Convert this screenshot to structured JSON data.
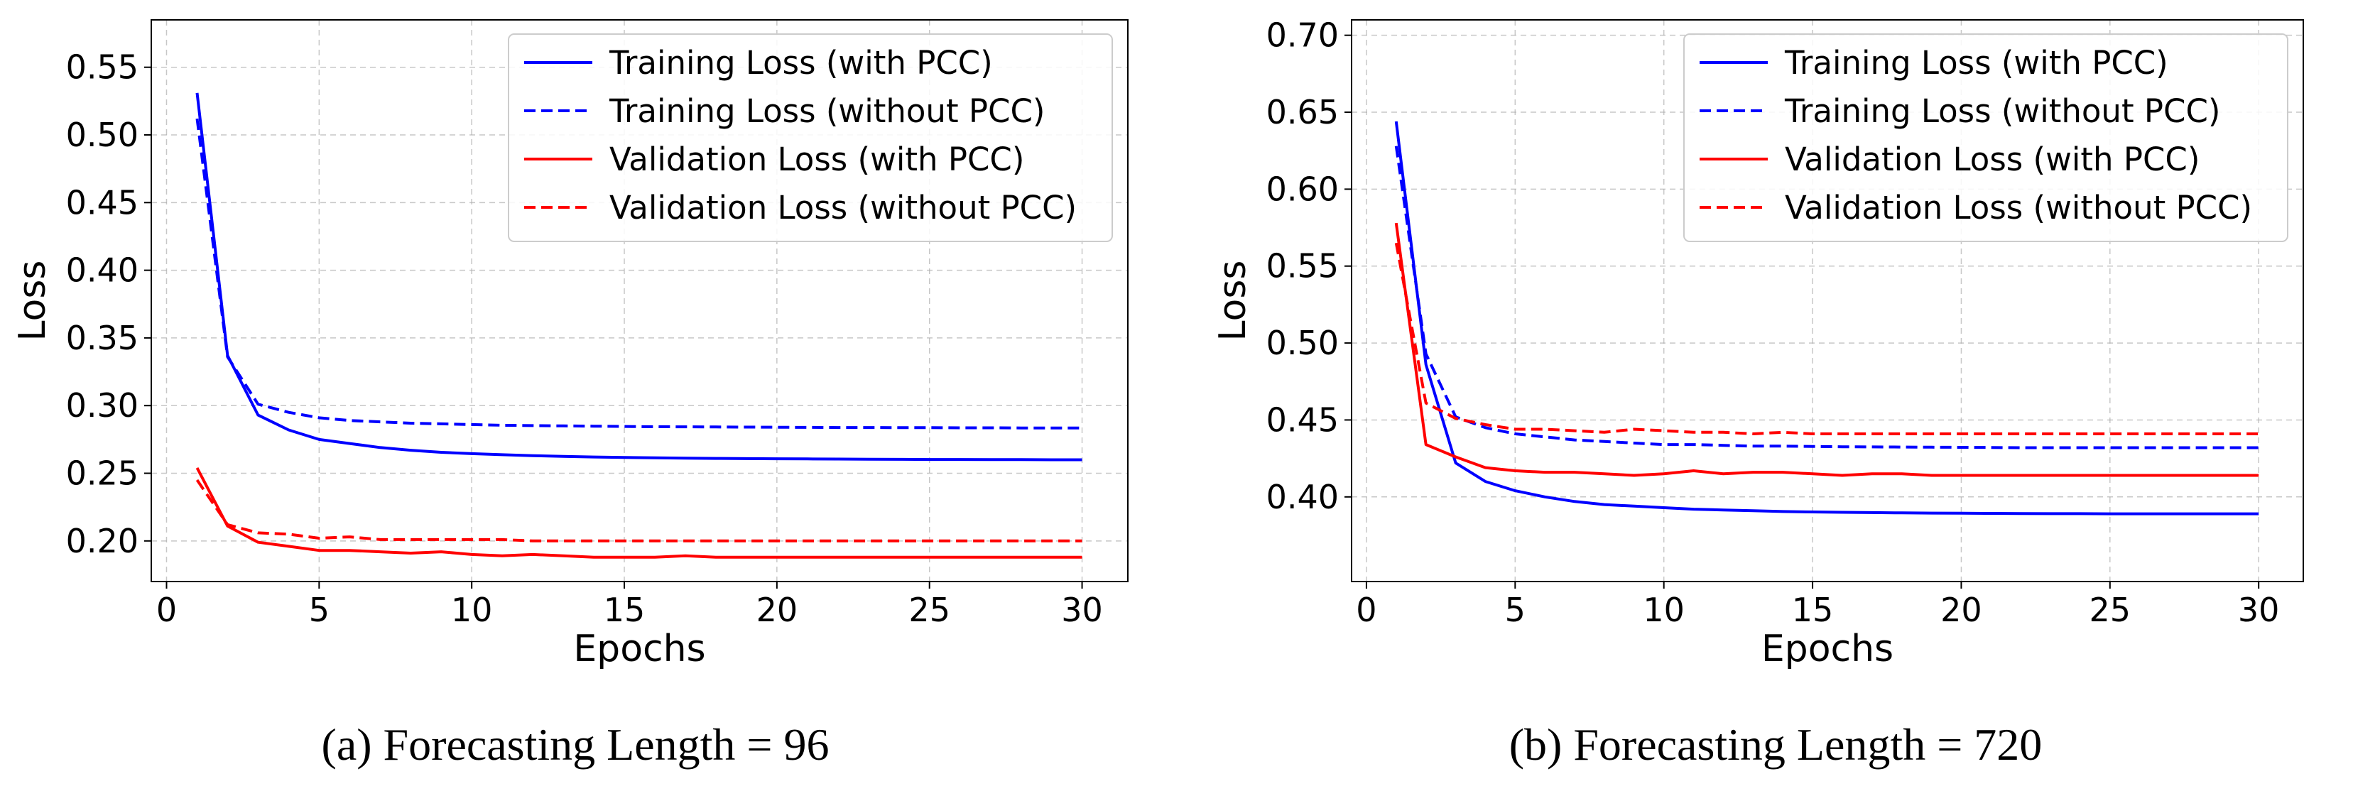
{
  "figure": {
    "captions": [
      "(a) Forecasting Length = 96",
      "(b) Forecasting Length = 720"
    ]
  },
  "colors": {
    "blue": "#0000ff",
    "red": "#ff0000",
    "grid": "#b0b0b0"
  },
  "chart_data": [
    {
      "type": "line",
      "caption": "(a) Forecasting Length = 96",
      "xlabel": "Epochs",
      "ylabel": "Loss",
      "xlim": [
        -0.5,
        31.5
      ],
      "ylim": [
        0.17,
        0.585
      ],
      "xticks": [
        0,
        5,
        10,
        15,
        20,
        25,
        30
      ],
      "xtick_labels": [
        "0",
        "5",
        "10",
        "15",
        "20",
        "25",
        "30"
      ],
      "yticks": [
        0.2,
        0.25,
        0.3,
        0.35,
        0.4,
        0.45,
        0.5,
        0.55
      ],
      "ytick_labels": [
        "0.20",
        "0.25",
        "0.30",
        "0.35",
        "0.40",
        "0.45",
        "0.50",
        "0.55"
      ],
      "grid": true,
      "legend_position": "top-right",
      "x": [
        1,
        2,
        3,
        4,
        5,
        6,
        7,
        8,
        9,
        10,
        11,
        12,
        13,
        14,
        15,
        16,
        17,
        18,
        19,
        20,
        21,
        22,
        23,
        24,
        25,
        26,
        27,
        28,
        29,
        30
      ],
      "series": [
        {
          "name": "Training Loss (with PCC)",
          "color": "#0000ff",
          "dash": "solid",
          "values": [
            0.531,
            0.337,
            0.293,
            0.282,
            0.275,
            0.272,
            0.269,
            0.267,
            0.2655,
            0.2645,
            0.2637,
            0.263,
            0.2625,
            0.262,
            0.2617,
            0.2614,
            0.2612,
            0.261,
            0.2608,
            0.2607,
            0.2606,
            0.2605,
            0.2604,
            0.2603,
            0.2602,
            0.2602,
            0.2601,
            0.2601,
            0.26,
            0.26
          ]
        },
        {
          "name": "Training Loss (without PCC)",
          "color": "#0000ff",
          "dash": "dashed",
          "values": [
            0.512,
            0.336,
            0.301,
            0.295,
            0.291,
            0.289,
            0.288,
            0.287,
            0.2865,
            0.286,
            0.2855,
            0.2852,
            0.285,
            0.2848,
            0.2846,
            0.2844,
            0.2843,
            0.2842,
            0.2841,
            0.284,
            0.2839,
            0.2838,
            0.2838,
            0.2837,
            0.2837,
            0.2836,
            0.2836,
            0.2835,
            0.2835,
            0.2835
          ]
        },
        {
          "name": "Validation Loss (with PCC)",
          "color": "#ff0000",
          "dash": "solid",
          "values": [
            0.254,
            0.211,
            0.199,
            0.196,
            0.193,
            0.193,
            0.192,
            0.191,
            0.192,
            0.19,
            0.189,
            0.19,
            0.189,
            0.188,
            0.188,
            0.188,
            0.189,
            0.188,
            0.188,
            0.188,
            0.188,
            0.188,
            0.188,
            0.188,
            0.188,
            0.188,
            0.188,
            0.188,
            0.188,
            0.188
          ]
        },
        {
          "name": "Validation Loss (without PCC)",
          "color": "#ff0000",
          "dash": "dashed",
          "values": [
            0.245,
            0.212,
            0.206,
            0.205,
            0.202,
            0.203,
            0.201,
            0.201,
            0.201,
            0.201,
            0.201,
            0.2,
            0.2,
            0.2,
            0.2,
            0.2,
            0.2,
            0.2,
            0.2,
            0.2,
            0.2,
            0.2,
            0.2,
            0.2,
            0.2,
            0.2,
            0.2,
            0.2,
            0.2,
            0.2
          ]
        }
      ]
    },
    {
      "type": "line",
      "caption": "(b) Forecasting Length = 720",
      "xlabel": "Epochs",
      "ylabel": "Loss",
      "xlim": [
        -0.5,
        31.5
      ],
      "ylim": [
        0.345,
        0.71
      ],
      "xticks": [
        0,
        5,
        10,
        15,
        20,
        25,
        30
      ],
      "xtick_labels": [
        "0",
        "5",
        "10",
        "15",
        "20",
        "25",
        "30"
      ],
      "yticks": [
        0.4,
        0.45,
        0.5,
        0.55,
        0.6,
        0.65,
        0.7
      ],
      "ytick_labels": [
        "0.40",
        "0.45",
        "0.50",
        "0.55",
        "0.60",
        "0.65",
        "0.70"
      ],
      "grid": true,
      "legend_position": "top-right",
      "x": [
        1,
        2,
        3,
        4,
        5,
        6,
        7,
        8,
        9,
        10,
        11,
        12,
        13,
        14,
        15,
        16,
        17,
        18,
        19,
        20,
        21,
        22,
        23,
        24,
        25,
        26,
        27,
        28,
        29,
        30
      ],
      "series": [
        {
          "name": "Training Loss (with PCC)",
          "color": "#0000ff",
          "dash": "solid",
          "values": [
            0.644,
            0.486,
            0.422,
            0.41,
            0.404,
            0.4,
            0.397,
            0.395,
            0.394,
            0.393,
            0.392,
            0.3915,
            0.391,
            0.3905,
            0.3902,
            0.39,
            0.3898,
            0.3896,
            0.3895,
            0.3894,
            0.3893,
            0.3892,
            0.3891,
            0.3891,
            0.389,
            0.389,
            0.389,
            0.389,
            0.389,
            0.389
          ]
        },
        {
          "name": "Training Loss (without PCC)",
          "color": "#0000ff",
          "dash": "dashed",
          "values": [
            0.628,
            0.493,
            0.452,
            0.445,
            0.441,
            0.439,
            0.437,
            0.436,
            0.435,
            0.434,
            0.434,
            0.4335,
            0.433,
            0.433,
            0.4328,
            0.4326,
            0.4325,
            0.4324,
            0.4323,
            0.4322,
            0.4321,
            0.432,
            0.432,
            0.432,
            0.432,
            0.432,
            0.432,
            0.432,
            0.432,
            0.432
          ]
        },
        {
          "name": "Validation Loss (with PCC)",
          "color": "#ff0000",
          "dash": "solid",
          "values": [
            0.578,
            0.434,
            0.426,
            0.419,
            0.417,
            0.416,
            0.416,
            0.415,
            0.414,
            0.415,
            0.417,
            0.415,
            0.416,
            0.416,
            0.415,
            0.414,
            0.415,
            0.415,
            0.414,
            0.414,
            0.414,
            0.414,
            0.414,
            0.414,
            0.414,
            0.414,
            0.414,
            0.414,
            0.414,
            0.414
          ]
        },
        {
          "name": "Validation Loss (without PCC)",
          "color": "#ff0000",
          "dash": "dashed",
          "values": [
            0.565,
            0.461,
            0.451,
            0.447,
            0.444,
            0.444,
            0.443,
            0.442,
            0.444,
            0.443,
            0.442,
            0.442,
            0.441,
            0.442,
            0.441,
            0.441,
            0.441,
            0.441,
            0.441,
            0.441,
            0.441,
            0.441,
            0.441,
            0.441,
            0.441,
            0.441,
            0.441,
            0.441,
            0.441,
            0.441
          ]
        }
      ]
    }
  ]
}
